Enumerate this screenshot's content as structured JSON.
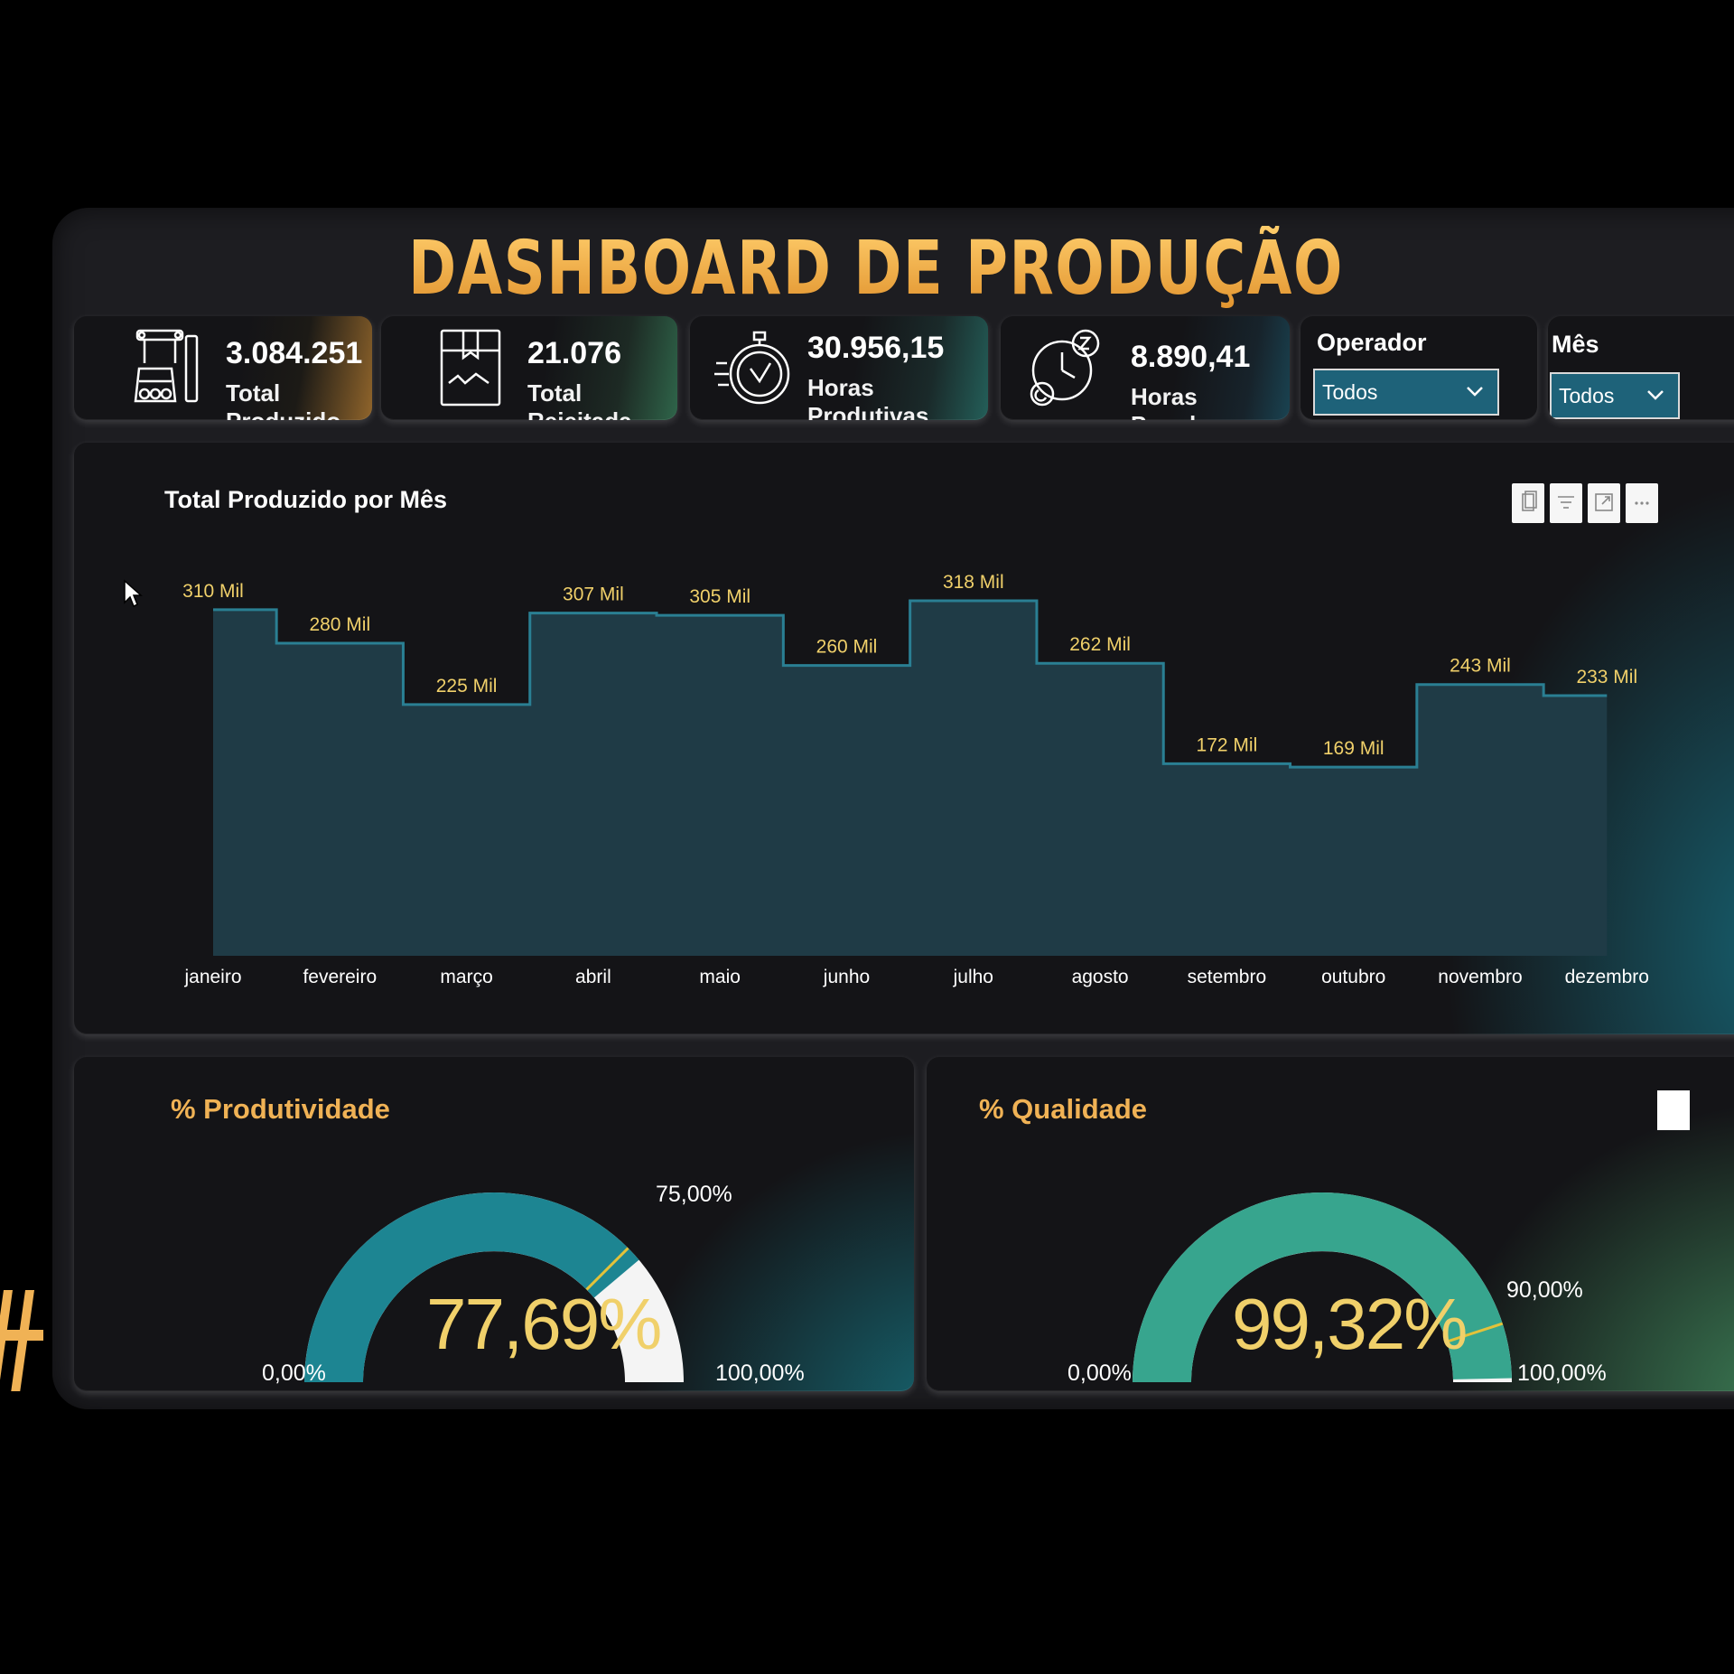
{
  "dashboard": {
    "title": "DASHBOARD DE PRODUÇÃO"
  },
  "kpis": [
    {
      "value": "3.084.251",
      "label": "Total Produzido",
      "icon": "robot-arm-icon"
    },
    {
      "value": "21.076",
      "label": "Total Rejeitada",
      "icon": "box-icon"
    },
    {
      "value": "30.956,15",
      "label": "Horas Produtivas",
      "icon": "stopwatch-icon"
    },
    {
      "value": "8.890,41",
      "label": "Horas Paradas",
      "icon": "sleep-clock-icon"
    }
  ],
  "filters": {
    "operador": {
      "label": "Operador",
      "selected": "Todos"
    },
    "mes": {
      "label": "Mês",
      "selected": "Todos"
    }
  },
  "chart_data": {
    "type": "area",
    "title": "Total Produzido por Mês",
    "categories": [
      "janeiro",
      "fevereiro",
      "março",
      "abril",
      "maio",
      "junho",
      "julho",
      "agosto",
      "setembro",
      "outubro",
      "novembro",
      "dezembro"
    ],
    "values": [
      310,
      280,
      225,
      307,
      305,
      260,
      318,
      262,
      172,
      169,
      243,
      233
    ],
    "data_labels": [
      "310 Mil",
      "280 Mil",
      "225 Mil",
      "307 Mil",
      "305 Mil",
      "260 Mil",
      "318 Mil",
      "262 Mil",
      "172 Mil",
      "169 Mil",
      "243 Mil",
      "233 Mil"
    ],
    "ylim": [
      0,
      318
    ],
    "grid": false,
    "colors": {
      "fill": "#1f3b46",
      "line": "#2a7f93",
      "label": "#f0d06a"
    }
  },
  "gauges": {
    "produtividade": {
      "title": "% Produtividade",
      "value": 77.69,
      "value_text": "77,69%",
      "target": 75.0,
      "target_text": "75,00%",
      "min_text": "0,00%",
      "max_text": "100,00%",
      "color": "#1d8592"
    },
    "qualidade": {
      "title": "% Qualidade",
      "value": 99.32,
      "value_text": "99,32%",
      "target": 90.0,
      "target_text": "90,00%",
      "min_text": "0,00%",
      "max_text": "100,00%",
      "color": "#37a58e"
    }
  },
  "toolbar": {
    "icons": [
      "copy-icon",
      "filter-icon",
      "focus-mode-icon",
      "more-options-icon"
    ]
  }
}
